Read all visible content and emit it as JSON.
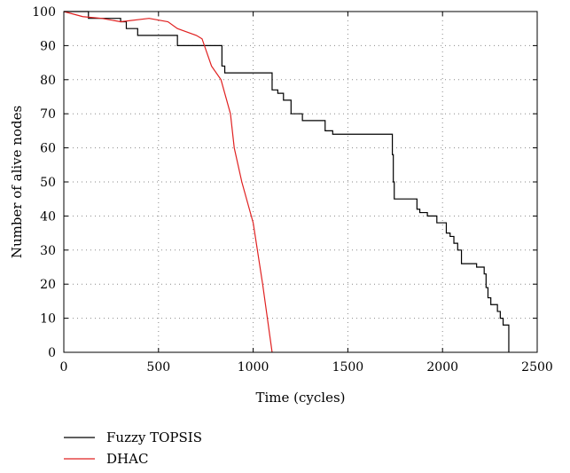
{
  "chart_data": {
    "type": "line",
    "title": "",
    "xlabel": "Time (cycles)",
    "ylabel": "Number of alive nodes",
    "xlim": [
      0,
      2500
    ],
    "ylim": [
      0,
      100
    ],
    "xticks": [
      0,
      500,
      1000,
      1500,
      2000,
      2500
    ],
    "yticks": [
      0,
      10,
      20,
      30,
      40,
      50,
      60,
      70,
      80,
      90,
      100
    ],
    "grid": true,
    "legend_position": "bottom-left-below",
    "series": [
      {
        "name": "Fuzzy TOPSIS",
        "color": "#000000",
        "step": true,
        "x": [
          0,
          120,
          130,
          260,
          300,
          330,
          390,
          600,
          820,
          835,
          850,
          1050,
          1100,
          1130,
          1160,
          1200,
          1260,
          1380,
          1420,
          1730,
          1735,
          1740,
          1745,
          1850,
          1865,
          1880,
          1920,
          1970,
          2020,
          2040,
          2060,
          2080,
          2100,
          2180,
          2220,
          2230,
          2240,
          2255,
          2270,
          2290,
          2305,
          2320,
          2340,
          2350
        ],
        "y": [
          100,
          100,
          98,
          98,
          97,
          95,
          93,
          90,
          90,
          84,
          82,
          82,
          77,
          76,
          74,
          70,
          68,
          65,
          64,
          64,
          58,
          50,
          45,
          45,
          42,
          41,
          40,
          38,
          35,
          34,
          32,
          30,
          26,
          25,
          23,
          19,
          16,
          14,
          14,
          12,
          10,
          8,
          8,
          0
        ]
      },
      {
        "name": "DHAC",
        "color": "#e02020",
        "step": false,
        "x": [
          0,
          100,
          200,
          300,
          450,
          550,
          600,
          700,
          730,
          780,
          830,
          880,
          900,
          940,
          1000,
          1050,
          1100
        ],
        "y": [
          100,
          98.5,
          98,
          97,
          98,
          97,
          95,
          93,
          92,
          84,
          80,
          70,
          60,
          50,
          38,
          20,
          0
        ]
      }
    ]
  }
}
